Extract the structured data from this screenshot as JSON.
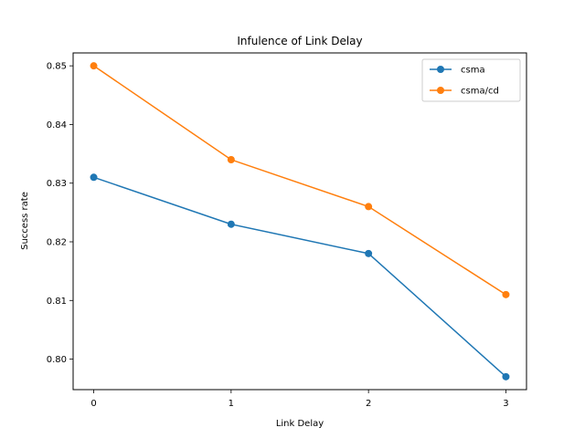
{
  "chart_data": {
    "type": "line",
    "title": "Infulence of Link Delay",
    "xlabel": "Link Delay",
    "ylabel": "Success rate",
    "x": [
      0,
      1,
      2,
      3
    ],
    "xticks": [
      "0",
      "1",
      "2",
      "3"
    ],
    "xlim": [
      -0.15,
      3.15
    ],
    "ylim": [
      0.7948,
      0.8522
    ],
    "yticks": [
      "0.80",
      "0.81",
      "0.82",
      "0.83",
      "0.84",
      "0.85"
    ],
    "grid": false,
    "legend_position": "top-right",
    "series": [
      {
        "name": "csma",
        "values": [
          0.831,
          0.823,
          0.818,
          0.797
        ],
        "color": "#1f77b4"
      },
      {
        "name": "csma/cd",
        "values": [
          0.85,
          0.834,
          0.826,
          0.811
        ],
        "color": "#ff7f0e"
      }
    ]
  }
}
